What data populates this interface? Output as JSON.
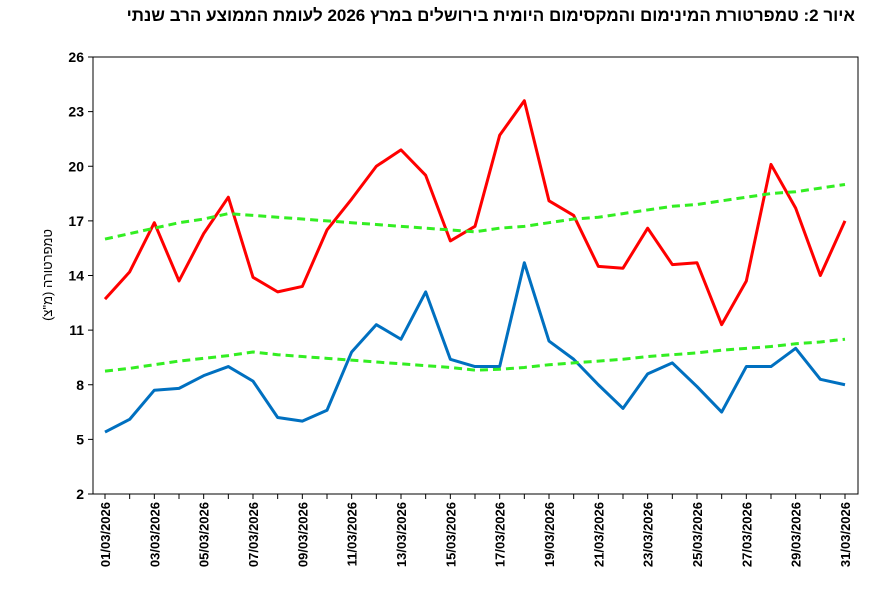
{
  "chart_data": {
    "type": "line",
    "title": "איור 2: טמפרטורת המינימום והמקסימום היומית בירושלים במרץ 2026 לעומת הממוצע הרב שנתי",
    "ylabel": "טמפרטורה (מ\"צ)",
    "xlabel": "",
    "ylim": [
      2,
      26
    ],
    "yticks": [
      2,
      5,
      8,
      11,
      14,
      17,
      20,
      23,
      26
    ],
    "grid": false,
    "x": [
      "01/03/2026",
      "02/03/2026",
      "03/03/2026",
      "04/03/2026",
      "05/03/2026",
      "06/03/2026",
      "07/03/2026",
      "08/03/2026",
      "09/03/2026",
      "10/03/2026",
      "11/03/2026",
      "12/03/2026",
      "13/03/2026",
      "14/03/2026",
      "15/03/2026",
      "16/03/2026",
      "17/03/2026",
      "18/03/2026",
      "19/03/2026",
      "20/03/2026",
      "21/03/2026",
      "22/03/2026",
      "23/03/2026",
      "24/03/2026",
      "25/03/2026",
      "26/03/2026",
      "27/03/2026",
      "28/03/2026",
      "29/03/2026",
      "30/03/2026",
      "31/03/2026"
    ],
    "series": [
      {
        "color": "#ff0000",
        "style": "solid",
        "values": [
          12.7,
          14.2,
          16.9,
          13.7,
          16.3,
          18.3,
          13.9,
          13.1,
          13.4,
          16.5,
          18.2,
          20.0,
          20.9,
          19.5,
          15.9,
          16.7,
          21.7,
          23.6,
          18.1,
          17.3,
          14.5,
          14.4,
          16.6,
          14.6,
          14.7,
          11.3,
          13.7,
          20.1,
          17.7,
          14.0,
          17.0
        ]
      },
      {
        "color": "#0070c0",
        "style": "solid",
        "values": [
          5.4,
          6.1,
          7.7,
          7.8,
          8.5,
          9.0,
          8.2,
          6.2,
          6.0,
          6.6,
          9.8,
          11.3,
          10.5,
          13.1,
          9.4,
          9.0,
          9.0,
          14.7,
          10.4,
          9.4,
          8.0,
          6.7,
          8.6,
          9.2,
          7.9,
          6.5,
          9.0,
          9.0,
          10.0,
          8.3,
          8.0
        ]
      },
      {
        "color": "#33ee22",
        "style": "dashed",
        "values": [
          16.0,
          16.3,
          16.6,
          16.9,
          17.1,
          17.4,
          17.3,
          17.2,
          17.1,
          17.0,
          16.9,
          16.8,
          16.7,
          16.6,
          16.5,
          16.4,
          16.6,
          16.7,
          16.9,
          17.1,
          17.2,
          17.4,
          17.6,
          17.8,
          17.9,
          18.1,
          18.3,
          18.5,
          18.6,
          18.8,
          19.0
        ]
      },
      {
        "color": "#33ee22",
        "style": "dashed",
        "values": [
          8.75,
          8.9,
          9.1,
          9.3,
          9.45,
          9.6,
          9.8,
          9.65,
          9.55,
          9.45,
          9.35,
          9.25,
          9.15,
          9.05,
          8.95,
          8.8,
          8.85,
          8.95,
          9.1,
          9.2,
          9.3,
          9.4,
          9.55,
          9.65,
          9.75,
          9.9,
          10.0,
          10.1,
          10.25,
          10.35,
          10.5
        ]
      }
    ]
  }
}
